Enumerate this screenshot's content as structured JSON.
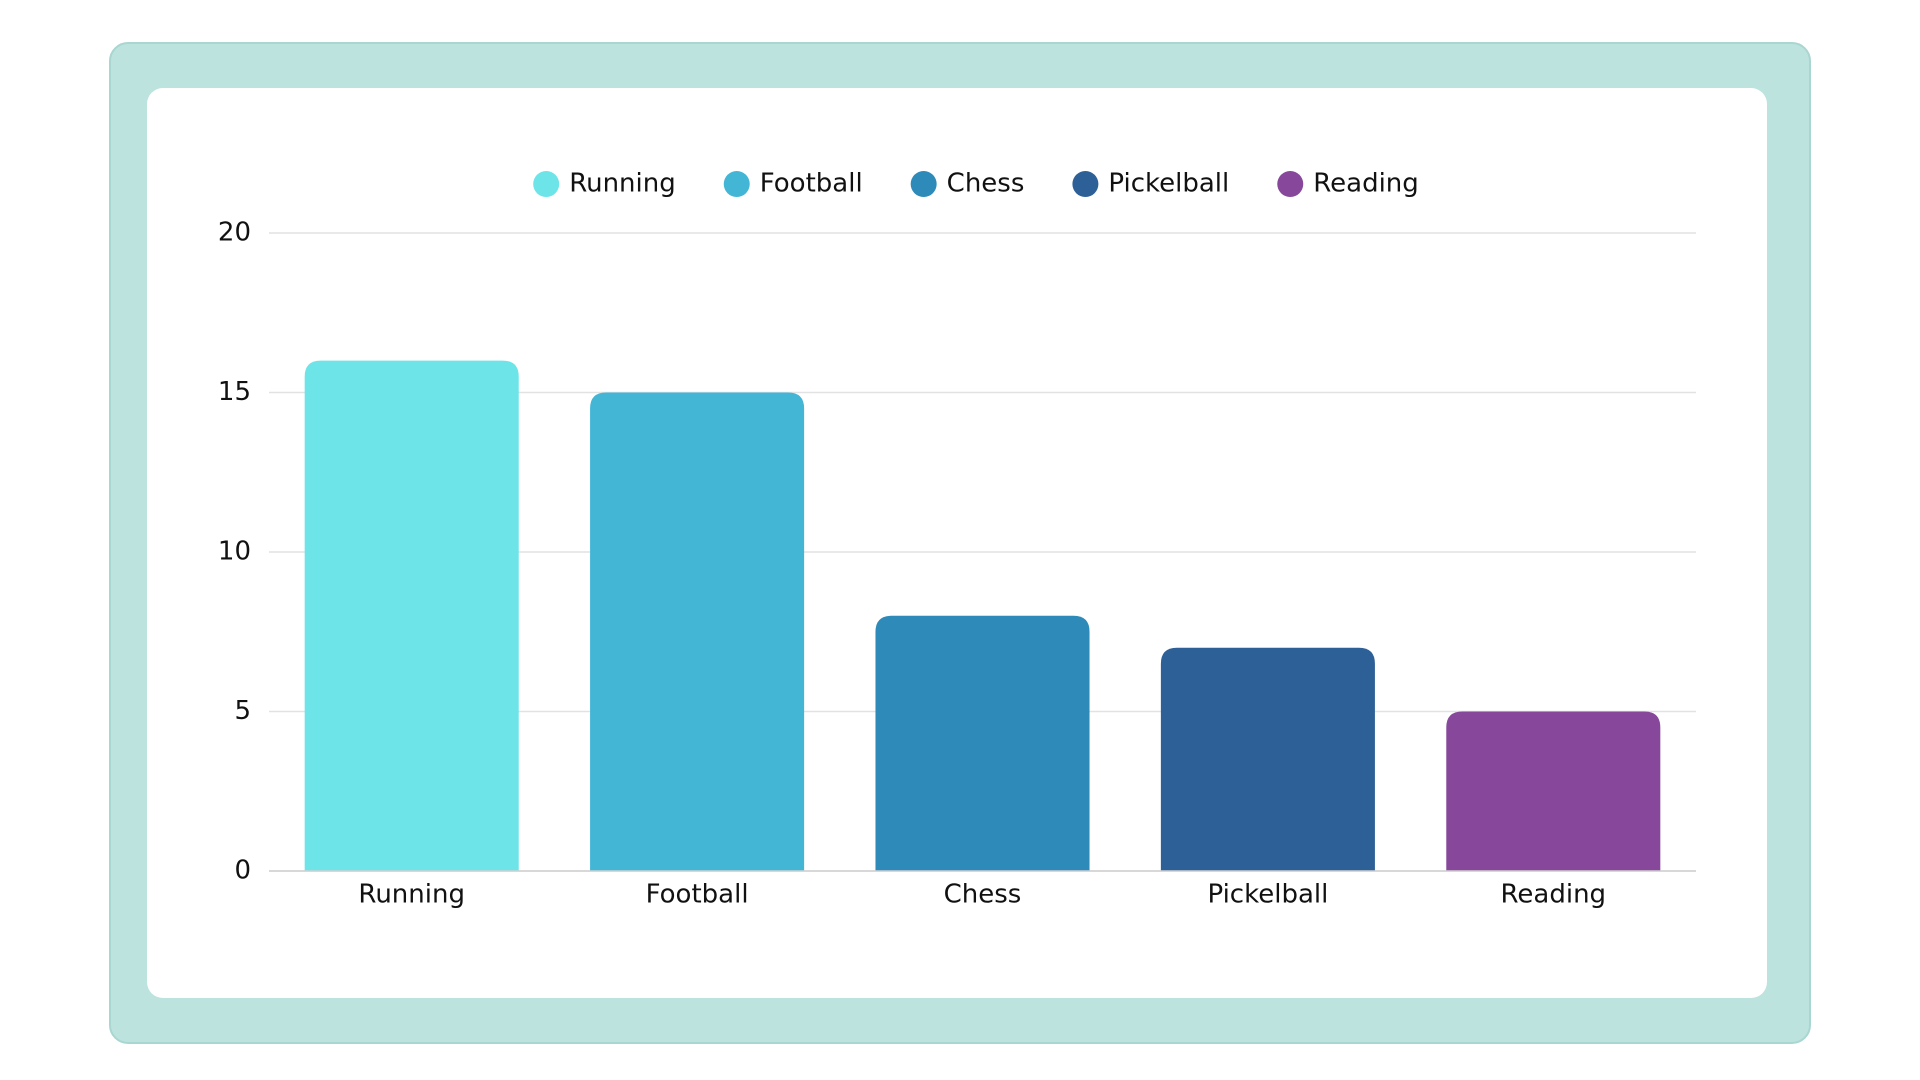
{
  "chart_data": {
    "type": "bar",
    "categories": [
      "Running",
      "Football",
      "Chess",
      "Pickelball",
      "Reading"
    ],
    "values": [
      16,
      15,
      8,
      7,
      5
    ],
    "colors": [
      "#6ce4e8",
      "#43b6d6",
      "#2d8ab9",
      "#2e6098",
      "#87489b"
    ],
    "ylim": [
      0,
      20
    ],
    "yticks": [
      0,
      5,
      10,
      15,
      20
    ],
    "grid": true,
    "legend": "top"
  }
}
